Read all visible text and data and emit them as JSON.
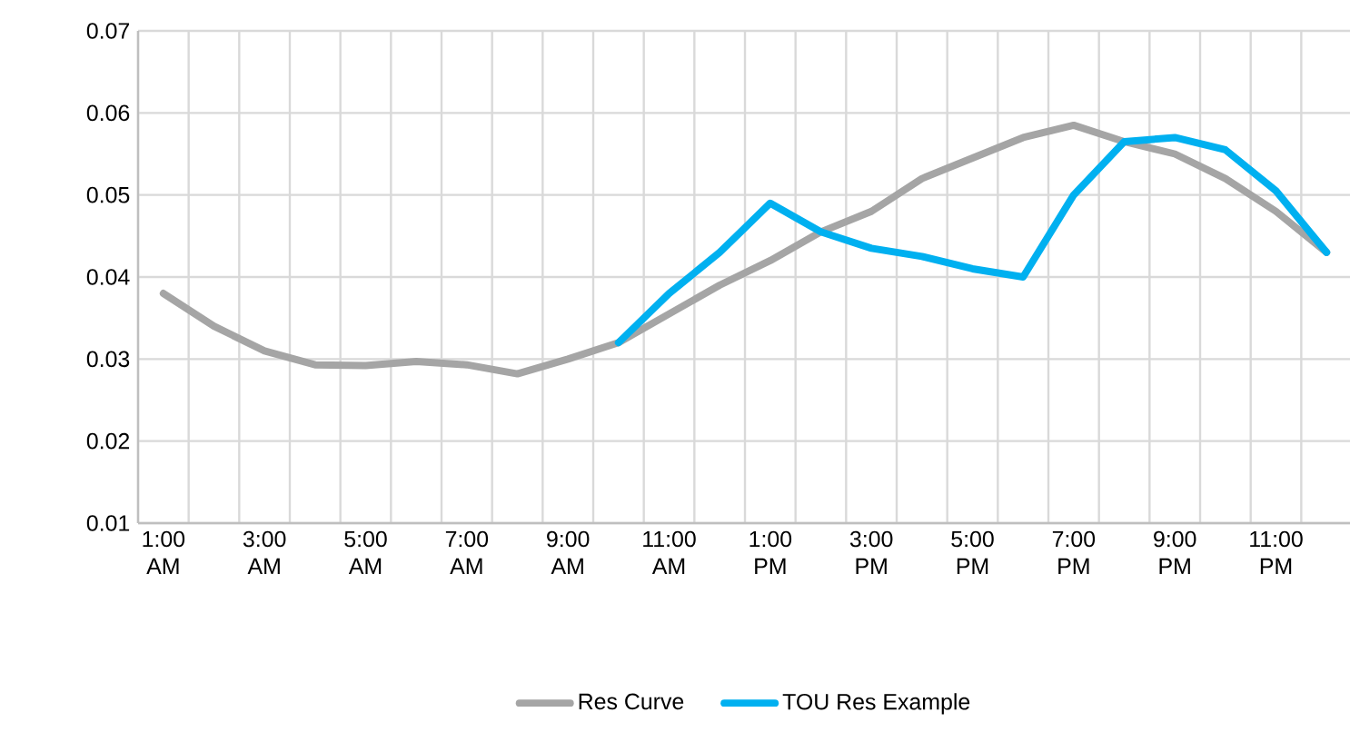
{
  "chart_data": {
    "type": "line",
    "categories": [
      "1:00 AM",
      null,
      "3:00 AM",
      null,
      "5:00 AM",
      null,
      "7:00 AM",
      null,
      "9:00 AM",
      null,
      "11:00 AM",
      null,
      "1:00 PM",
      null,
      "3:00 PM",
      null,
      "5:00 PM",
      null,
      "7:00 PM",
      null,
      "9:00 PM",
      null,
      "11:00 PM",
      null
    ],
    "series": [
      {
        "name": "Res Curve",
        "color": "#a5a5a5",
        "values": [
          0.038,
          0.034,
          0.031,
          0.0293,
          0.0292,
          0.0297,
          0.0293,
          0.0282,
          0.03,
          0.032,
          0.0355,
          0.039,
          0.042,
          0.0455,
          0.048,
          0.052,
          0.0545,
          0.057,
          0.0585,
          0.0565,
          0.055,
          0.052,
          0.048,
          0.043
        ]
      },
      {
        "name": "TOU Res Example",
        "color": "#00b0f0",
        "values": [
          null,
          null,
          null,
          null,
          null,
          null,
          null,
          null,
          null,
          0.032,
          0.038,
          0.043,
          0.049,
          0.0455,
          0.0435,
          0.0425,
          0.041,
          0.04,
          0.05,
          0.0565,
          0.057,
          0.0555,
          0.0505,
          0.043
        ]
      }
    ],
    "ylim": [
      0.01,
      0.07
    ],
    "yticks": [
      0.01,
      0.02,
      0.03,
      0.04,
      0.05,
      0.06,
      0.07
    ],
    "grid": true,
    "legend": "bottom",
    "marker": "none",
    "line_style": "solid"
  }
}
